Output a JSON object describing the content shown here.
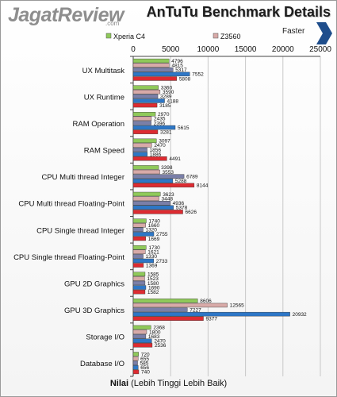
{
  "header": {
    "logo_text": "JagatReview",
    "logo_domain": ".com",
    "title": "AnTuTu Benchmark Details",
    "faster_label": "Faster"
  },
  "xlabel": {
    "bold": "Nilai",
    "rest": " (Lebih Tinggi Lebih Baik)"
  },
  "chart_data": {
    "type": "bar",
    "orientation": "horizontal",
    "title": "AnTuTu Benchmark Details",
    "xlabel": "Nilai (Lebih Tinggi Lebih Baik)",
    "ylabel": "",
    "xlim": [
      0,
      25000
    ],
    "xticks": [
      0,
      5000,
      10000,
      15000,
      20000,
      25000
    ],
    "xtick_labels": [
      "0",
      "5000",
      "10000",
      "15000",
      "20000",
      "25000"
    ],
    "grid": true,
    "legend_position": "top",
    "categories": [
      "UX Multitask",
      "UX Runtime",
      "RAM Operation",
      "RAM Speed",
      "CPU Multi thread Integer",
      "CPU Multi thread Floating-Point",
      "CPU Single thread Integer",
      "CPU Single thread Floating-Point",
      "GPU 2D Graphics",
      "GPU 3D Graphics",
      "Storage I/O",
      "Database I/O"
    ],
    "series": [
      {
        "name": "Xperia C4",
        "color": "#8fc95a",
        "values": [
          4796,
          3360,
          2970,
          3097,
          3398,
          3623,
          1740,
          1730,
          1585,
          8606,
          2368,
          720
        ]
      },
      {
        "name": "Z3560",
        "color": "#d8aaa8",
        "values": [
          4815,
          3590,
          2435,
          2470,
          3553,
          3448,
          1660,
          1621,
          1523,
          12565,
          1800,
          655
        ]
      },
      {
        "name": "",
        "color": "#7a7fa8",
        "values": [
          5317,
          3289,
          2396,
          1856,
          6789,
          4936,
          1320,
          1330,
          1580,
          7227,
          1683,
          585
        ]
      },
      {
        "name": "",
        "color": "#2e77c6",
        "values": [
          7552,
          4188,
          5615,
          1886,
          5288,
          5378,
          2755,
          2733,
          1690,
          20932,
          2470,
          656
        ]
      },
      {
        "name": "",
        "color": "#dd2b31",
        "values": [
          5808,
          3185,
          3281,
          4491,
          8144,
          6626,
          1669,
          1369,
          1582,
          9377,
          2536,
          740
        ]
      }
    ]
  }
}
